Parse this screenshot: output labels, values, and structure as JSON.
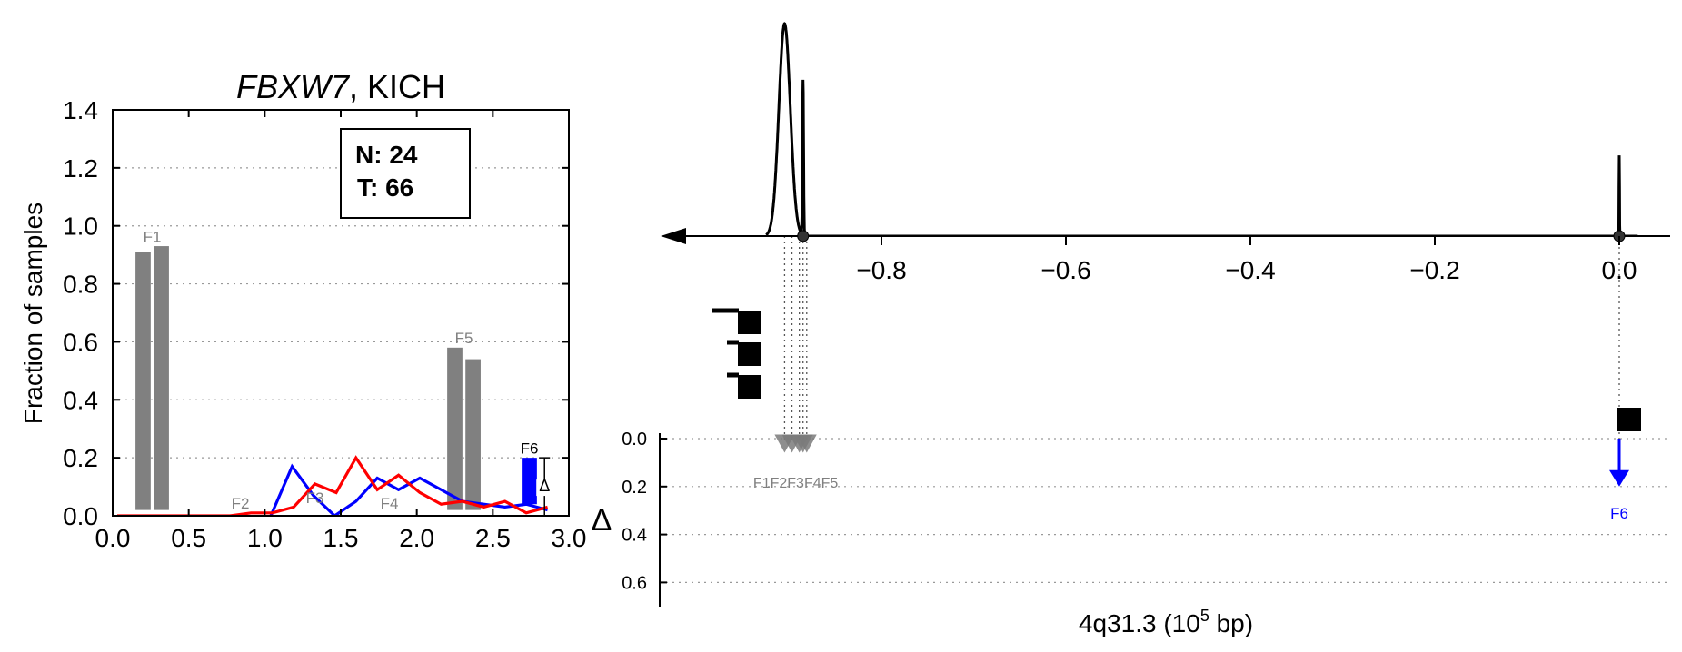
{
  "left": {
    "title_gene": "FBXW7",
    "title_rest": ", KICH",
    "ylabel": "Fraction of samples",
    "xlim": [
      0.0,
      3.0
    ],
    "ylim": [
      0.0,
      1.4
    ],
    "x_ticks": [
      "0.0",
      "0.5",
      "1.0",
      "1.5",
      "2.0",
      "2.5",
      "3.0"
    ],
    "y_ticks": [
      "0.0",
      "0.2",
      "0.4",
      "0.6",
      "0.8",
      "1.0",
      "1.2",
      "1.4"
    ],
    "legend": {
      "n": "N: 24",
      "t": "T: 66"
    },
    "delta_symbol": "Δ"
  },
  "right": {
    "xlabel_base": "4q31.3 (10",
    "xlabel_exp": "5",
    "xlabel_tail": " bp)",
    "x_ticks": [
      "−0.8",
      "−0.6",
      "−0.4",
      "−0.2",
      "0.0"
    ],
    "delta_label": "Δ",
    "delta_ticks": [
      "0.0",
      "0.2",
      "0.4",
      "0.6"
    ],
    "feature_labels_overlap": "F1F2F3F4F5",
    "f6_label": "F6"
  },
  "chart_data": [
    {
      "type": "bar",
      "title": "FBXW7, KICH",
      "ylabel": "Fraction of samples",
      "xlim": [
        0.0,
        3.0
      ],
      "ylim": [
        0.0,
        1.4
      ],
      "grid": "horizontal dotted",
      "bars": [
        {
          "feature": "F1",
          "x": 0.2,
          "value": 0.91,
          "color": "#808080"
        },
        {
          "feature": "F1",
          "x": 0.32,
          "value": 0.93,
          "color": "#808080"
        },
        {
          "feature": "F2",
          "x": 0.78,
          "value": 0.0,
          "color": "#808080"
        },
        {
          "feature": "F2",
          "x": 0.9,
          "value": 0.0,
          "color": "#808080"
        },
        {
          "feature": "F3",
          "x": 1.27,
          "value": 0.0,
          "color": "#808080"
        },
        {
          "feature": "F3",
          "x": 1.39,
          "value": 0.0,
          "color": "#808080"
        },
        {
          "feature": "F4",
          "x": 1.76,
          "value": 0.0,
          "color": "#808080"
        },
        {
          "feature": "F4",
          "x": 1.88,
          "value": 0.02,
          "color": "#808080"
        },
        {
          "feature": "F5",
          "x": 2.25,
          "value": 0.58,
          "color": "#808080"
        },
        {
          "feature": "F5",
          "x": 2.37,
          "value": 0.54,
          "color": "#808080"
        },
        {
          "feature": "F6",
          "x": 2.74,
          "value": 0.2,
          "color": "#0000ff"
        }
      ],
      "feature_labels": [
        {
          "text": "F1",
          "x": 0.26,
          "y": 0.96
        },
        {
          "text": "F2",
          "x": 0.84,
          "y": 0.04
        },
        {
          "text": "F3",
          "x": 1.33,
          "y": 0.06
        },
        {
          "text": "F4",
          "x": 1.82,
          "y": 0.04
        },
        {
          "text": "F5",
          "x": 2.31,
          "y": 0.61
        },
        {
          "text": "F6",
          "x": 2.74,
          "y": 0.23
        }
      ],
      "series": [
        {
          "color": "#0000ff",
          "x": [
            1.04,
            1.18,
            1.32,
            1.46,
            1.6,
            1.74,
            1.88,
            2.02,
            2.16,
            2.3,
            2.44,
            2.58,
            2.72,
            2.86
          ],
          "y": [
            0.0,
            0.17,
            0.07,
            0.0,
            0.05,
            0.13,
            0.09,
            0.13,
            0.09,
            0.05,
            0.04,
            0.03,
            0.04,
            0.02
          ]
        },
        {
          "color": "#ff0000",
          "x": [
            0.03,
            0.21,
            0.35,
            0.49,
            0.63,
            0.77,
            0.91,
            1.05,
            1.19,
            1.33,
            1.47,
            1.6,
            1.74,
            1.88,
            2.02,
            2.16,
            2.3,
            2.44,
            2.58,
            2.72,
            2.86
          ],
          "y": [
            0.0,
            0.0,
            0.0,
            0.0,
            0.0,
            0.0,
            0.01,
            0.01,
            0.03,
            0.11,
            0.08,
            0.2,
            0.09,
            0.14,
            0.08,
            0.04,
            0.05,
            0.03,
            0.05,
            0.01,
            0.03
          ]
        }
      ],
      "delta_bracket": {
        "x": 2.84,
        "from": 0.0,
        "to": 0.2
      }
    },
    {
      "type": "line",
      "xlabel": "4q31.3 (10^5 bp)",
      "xlim": [
        -0.96,
        0.06
      ],
      "x_ticks": [
        -0.8,
        -0.6,
        -0.4,
        -0.2,
        0.0
      ],
      "density_peaks": [
        {
          "center": -0.905,
          "height": 1.0
        },
        {
          "center": -0.885,
          "height": 0.73
        },
        {
          "center": 0.0,
          "height": 0.38
        }
      ],
      "markers": [
        -0.885,
        0.0
      ],
      "feature_positions": [
        -0.905,
        -0.897,
        -0.889,
        -0.885,
        -0.881
      ],
      "delta_panel": {
        "ylim": [
          0.0,
          0.7
        ],
        "y_ticks": [
          0.0,
          0.2,
          0.4,
          0.6
        ],
        "points": [
          {
            "feature": "F1",
            "x": -0.905,
            "delta": 0.0
          },
          {
            "feature": "F2",
            "x": -0.897,
            "delta": 0.0
          },
          {
            "feature": "F3",
            "x": -0.889,
            "delta": 0.0
          },
          {
            "feature": "F4",
            "x": -0.885,
            "delta": 0.0
          },
          {
            "feature": "F5",
            "x": -0.881,
            "delta": 0.0
          },
          {
            "feature": "F6",
            "x": 0.0,
            "delta": 0.2
          }
        ]
      }
    }
  ]
}
